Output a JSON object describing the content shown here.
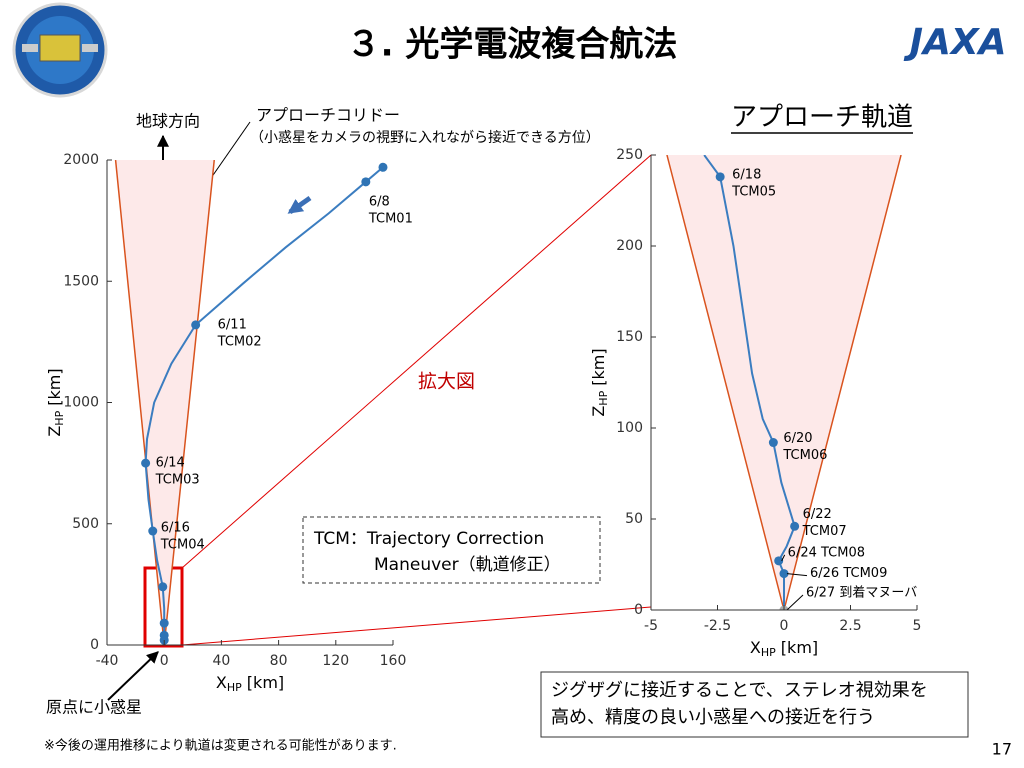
{
  "slide": {
    "title": "３. 光学電波複合航法",
    "logo": "JAXA",
    "earth_direction": "地球方向",
    "corridor_label": "アプローチコリドー",
    "corridor_note": "（小惑星をカメラの視野に入れながら接近できる方位）",
    "zoom_label": "拡大図",
    "tcm_note": [
      "TCM：Trajectory Correction",
      "Maneuver（軌道修正）"
    ],
    "origin_label": "原点に小惑星",
    "footnote": "※今後の運用推移により軌道は変更される可能性があります.",
    "summary": [
      "ジグザグに接近することで、ステレオ視効果を",
      "高め、精度の良い小惑星への接近を行う"
    ],
    "page_number": 17
  },
  "chart_data": [
    {
      "type": "line",
      "xlim": [
        -40,
        160
      ],
      "xticks": [
        -40,
        0,
        40,
        80,
        120,
        160
      ],
      "ylim": [
        0,
        2000
      ],
      "yticks": [
        0,
        500,
        1000,
        1500,
        2000
      ],
      "xlabel": {
        "text": "X",
        "subscript": "HP",
        "unit": " [km]"
      },
      "ylabel": {
        "text": "Z",
        "subscript": "HP",
        "unit": " [km]"
      },
      "corridor": {
        "x": [
          -34,
          0,
          35
        ],
        "y": [
          2000,
          0,
          2000
        ],
        "line_color": "#d9531e",
        "fill_color": "#fde9e9"
      },
      "trajectory": {
        "color": "#3b7dc0",
        "x": [
          153,
          141,
          115,
          85,
          55,
          22,
          5,
          -7,
          -12,
          -13,
          -11,
          -8,
          -5,
          -1,
          0,
          0,
          0,
          0
        ],
        "y": [
          1970,
          1910,
          1780,
          1640,
          1490,
          1320,
          1160,
          1000,
          850,
          750,
          600,
          470,
          350,
          240,
          150,
          90,
          40,
          0
        ]
      },
      "points": {
        "x": [
          153,
          141,
          22,
          -13,
          -8,
          -1,
          0,
          0,
          0
        ],
        "y": [
          1970,
          1910,
          1320,
          750,
          470,
          240,
          90,
          40,
          20
        ],
        "colors": [
          "#2f74b5",
          "#2f74b5",
          "#2f74b5",
          "#2f74b5",
          "#2f74b5",
          "#2f74b5",
          "#2f74b5",
          "#2f74b5",
          "#2f74b5"
        ],
        "labels": [
          null,
          [
            "6/8",
            "TCM01"
          ],
          [
            "6/11",
            "TCM02"
          ],
          [
            "6/14",
            "TCM03"
          ],
          [
            "6/16",
            "TCM04"
          ],
          null,
          null,
          null,
          null
        ]
      }
    },
    {
      "type": "line",
      "title": "アプローチ軌道",
      "xlim": [
        -5,
        5
      ],
      "xticks": [
        -5,
        -2.5,
        0,
        2.5,
        5
      ],
      "ylim": [
        0,
        250
      ],
      "yticks": [
        0,
        50,
        100,
        150,
        200,
        250
      ],
      "xlabel": {
        "text": "X",
        "subscript": "HP",
        "unit": " [km]"
      },
      "ylabel": {
        "text": "Z",
        "subscript": "HP",
        "unit": " [km]"
      },
      "corridor": {
        "x": [
          -4.4,
          0,
          4.4
        ],
        "y": [
          250,
          0,
          250
        ],
        "line_color": "#d9531e",
        "fill_color": "#fde9e9"
      },
      "trajectory": {
        "color": "#3b7dc0",
        "x": [
          -3.0,
          -2.4,
          -1.9,
          -1.5,
          -1.2,
          -0.8,
          -0.4,
          -0.1,
          0.4,
          0.1,
          -0.2,
          0,
          0
        ],
        "y": [
          250,
          238,
          200,
          160,
          130,
          105,
          92,
          70,
          46,
          35,
          27,
          20,
          0
        ]
      },
      "points": {
        "x": [
          -2.4,
          -0.4,
          0.4,
          -0.2,
          0,
          0
        ],
        "y": [
          238,
          92,
          46,
          27,
          20,
          0
        ],
        "colors": [
          "#2f74b5",
          "#2f74b5",
          "#2f74b5",
          "#2f74b5",
          "#2f74b5",
          "#aaaaaa"
        ],
        "labels": [
          [
            "6/18",
            "TCM05"
          ],
          [
            "6/20",
            "TCM06"
          ],
          [
            "6/22",
            "TCM07"
          ],
          [
            "6/24 TCM08"
          ],
          [
            "6/26 TCM09"
          ],
          [
            "6/27 到着マヌーバ"
          ]
        ]
      }
    }
  ]
}
